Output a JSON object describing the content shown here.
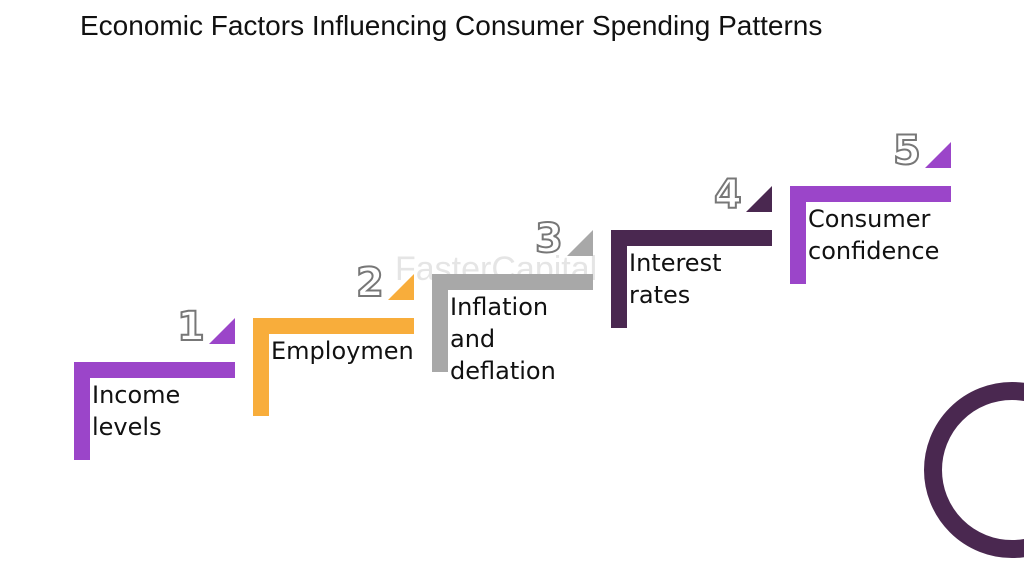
{
  "title": "Economic Factors Influencing Consumer Spending Patterns",
  "watermark": "FasterCapital",
  "steps": [
    {
      "number": 1,
      "label": "Income levels",
      "color": "#9b45c9"
    },
    {
      "number": 2,
      "label": "Employment",
      "color": "#f8ad3b"
    },
    {
      "number": 3,
      "label": "Inflation and deflation",
      "color": "#a8a8a8"
    },
    {
      "number": 4,
      "label": "Interest rates",
      "color": "#4a2850"
    },
    {
      "number": 5,
      "label": "Consumer confidence",
      "color": "#9b45c9"
    }
  ]
}
